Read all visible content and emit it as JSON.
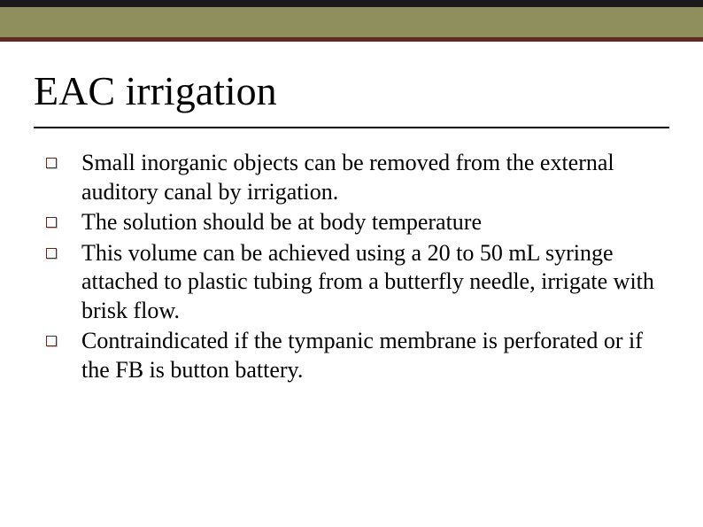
{
  "slide": {
    "title": "EAC irrigation",
    "bullets": [
      {
        "text": "Small inorganic objects can be removed from the external auditory canal by irrigation."
      },
      {
        "text": "The solution should be at body temperature"
      },
      {
        "text": "This volume can be achieved using a 20 to 50 mL syringe attached to plastic tubing from a butterfly needle, irrigate with brisk flow."
      },
      {
        "text": "Contraindicated if the tympanic membrane is perforated or if the FB is button battery."
      }
    ],
    "colors": {
      "top_dark": "#1a1a1a",
      "top_olive": "#8f8f5e",
      "top_maroon": "#5e2a21",
      "bullet_border": "#5e2a21",
      "text": "#000000",
      "background": "#ffffff"
    },
    "typography": {
      "title_fontsize": 46,
      "body_fontsize": 26,
      "font_family": "Times New Roman"
    }
  }
}
